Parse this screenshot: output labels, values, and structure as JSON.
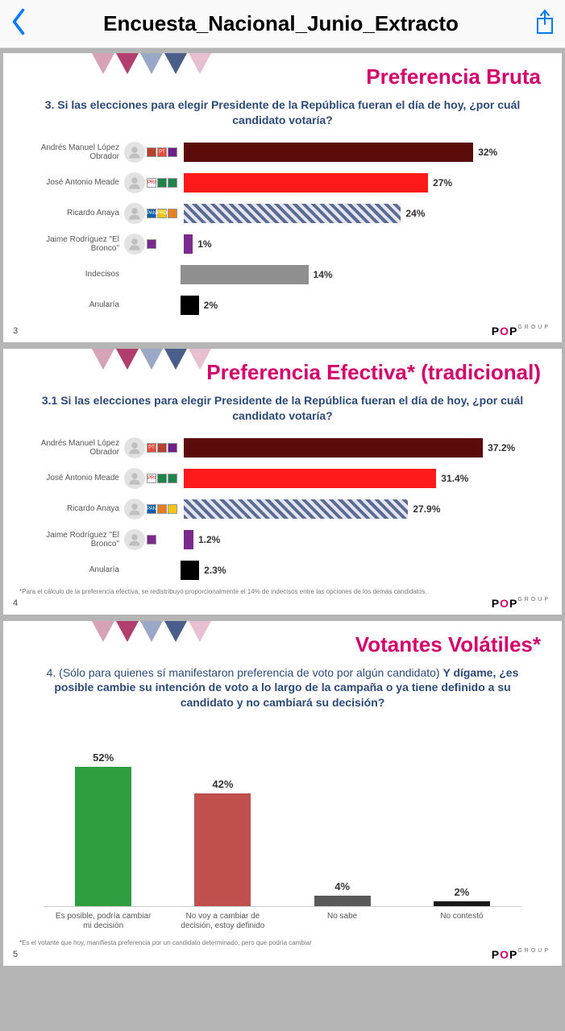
{
  "nav": {
    "title": "Encuesta_Nacional_Junio_Extracto"
  },
  "brand": "POP",
  "brand_sub": "GROUP",
  "brand_o_color": "#d6006c",
  "triangles": [
    "#d6a2b6",
    "#b23d6f",
    "#9aa7c7",
    "#4a5e8a",
    "#e7bfd0"
  ],
  "slide1": {
    "page": "3",
    "title": "Preferencia Bruta",
    "title_color": "#d6006c",
    "question": "3. Si las elecciones para elegir Presidente de la República fueran el día de hoy, ¿por cuál candidato votaría?",
    "max": 40,
    "rows": [
      {
        "name": "Andrés Manuel López Obrador",
        "value": 32,
        "val_label": "32%",
        "color": "#5c0b0b",
        "pattern": "solid",
        "face": true,
        "logos": [
          {
            "bg": "#b9412f",
            "txt": ""
          },
          {
            "bg": "#e74c3c",
            "txt": "PT"
          },
          {
            "bg": "#6e1f8a",
            "txt": ""
          }
        ]
      },
      {
        "name": "José Antonio Meade",
        "value": 27,
        "val_label": "27%",
        "color": "#ff1a1a",
        "pattern": "solid",
        "face": true,
        "logos": [
          {
            "bg": "#ffffff",
            "txt": "PRI"
          },
          {
            "bg": "#1e8449",
            "txt": ""
          },
          {
            "bg": "#1e8449",
            "txt": ""
          }
        ]
      },
      {
        "name": "Ricardo Anaya",
        "value": 24,
        "val_label": "24%",
        "color": "#5b6b95",
        "pattern": "hatched",
        "face": true,
        "logos": [
          {
            "bg": "#0b5ea8",
            "txt": "PAN"
          },
          {
            "bg": "#f1c40f",
            "txt": "PRD"
          },
          {
            "bg": "#e67e22",
            "txt": ""
          }
        ]
      },
      {
        "name": "Jaime Rodríguez \"El Bronco\"",
        "value": 1,
        "val_label": "1%",
        "color": "#7a2a8c",
        "pattern": "solid",
        "face": true,
        "logos": [
          {
            "bg": "#7a2a8c",
            "txt": ""
          }
        ]
      },
      {
        "name": "Indecisos",
        "value": 14,
        "val_label": "14%",
        "color": "#8f8f8f",
        "pattern": "solid",
        "face": false,
        "logos": []
      },
      {
        "name": "Anularía",
        "value": 2,
        "val_label": "2%",
        "color": "#000000",
        "pattern": "solid",
        "face": false,
        "logos": []
      }
    ]
  },
  "slide2": {
    "page": "4",
    "title": "Preferencia Efectiva* (tradicional)",
    "title_color": "#d6006c",
    "question": "3.1 Si las elecciones para elegir Presidente de la República fueran el día de hoy, ¿por cuál candidato votaría?",
    "footnote": "*Para el cálculo de la preferencia efectiva, se redistribuyó proporcionalmente el 14% de indecisos entre las opciones de los demás candidatos.",
    "max": 45,
    "rows": [
      {
        "name": "Andrés Manuel López Obrador",
        "value": 37.2,
        "val_label": "37.2%",
        "color": "#5c0b0b",
        "pattern": "solid",
        "face": true,
        "logos": [
          {
            "bg": "#e74c3c",
            "txt": "PT"
          },
          {
            "bg": "#b9412f",
            "txt": ""
          },
          {
            "bg": "#6e1f8a",
            "txt": ""
          }
        ]
      },
      {
        "name": "José Antonio Meade",
        "value": 31.4,
        "val_label": "31.4%",
        "color": "#ff1a1a",
        "pattern": "solid",
        "face": true,
        "logos": [
          {
            "bg": "#ffffff",
            "txt": "PRI"
          },
          {
            "bg": "#1e8449",
            "txt": ""
          },
          {
            "bg": "#1e8449",
            "txt": ""
          }
        ]
      },
      {
        "name": "Ricardo Anaya",
        "value": 27.9,
        "val_label": "27.9%",
        "color": "#5b6b95",
        "pattern": "hatched",
        "face": true,
        "logos": [
          {
            "bg": "#0b5ea8",
            "txt": "PAN"
          },
          {
            "bg": "#e67e22",
            "txt": ""
          },
          {
            "bg": "#f1c40f",
            "txt": ""
          }
        ]
      },
      {
        "name": "Jaime Rodríguez \"El Bronco\"",
        "value": 1.2,
        "val_label": "1.2%",
        "color": "#7a2a8c",
        "pattern": "solid",
        "face": true,
        "logos": [
          {
            "bg": "#7a2a8c",
            "txt": ""
          }
        ]
      },
      {
        "name": "Anularía",
        "value": 2.3,
        "val_label": "2.3%",
        "color": "#000000",
        "pattern": "solid",
        "face": false,
        "logos": []
      }
    ]
  },
  "slide3": {
    "page": "5",
    "title": "Votantes Volátiles*",
    "title_color": "#d6006c",
    "question_light": "4. (Sólo para quienes sí manifestaron preferencia de voto por algún candidato) ",
    "question_bold": "Y dígame, ¿es posible cambie su intención de voto a lo largo de la campaña o ya tiene definido a su candidato y no cambiará su decisión?",
    "footnote": "*Es el votante que hoy, manifiesta preferencia por un candidato determinado, pero que podría cambiar",
    "max": 60,
    "bars": [
      {
        "label": "Es posible, podría cambiar mi decisión",
        "value": 52,
        "val_label": "52%",
        "color": "#2e9e3f"
      },
      {
        "label": "No voy a cambiar de decisión, estoy definido",
        "value": 42,
        "val_label": "42%",
        "color": "#c0504d"
      },
      {
        "label": "No sabe",
        "value": 4,
        "val_label": "4%",
        "color": "#595959"
      },
      {
        "label": "No contestó",
        "value": 2,
        "val_label": "2%",
        "color": "#1a1a1a"
      }
    ]
  }
}
